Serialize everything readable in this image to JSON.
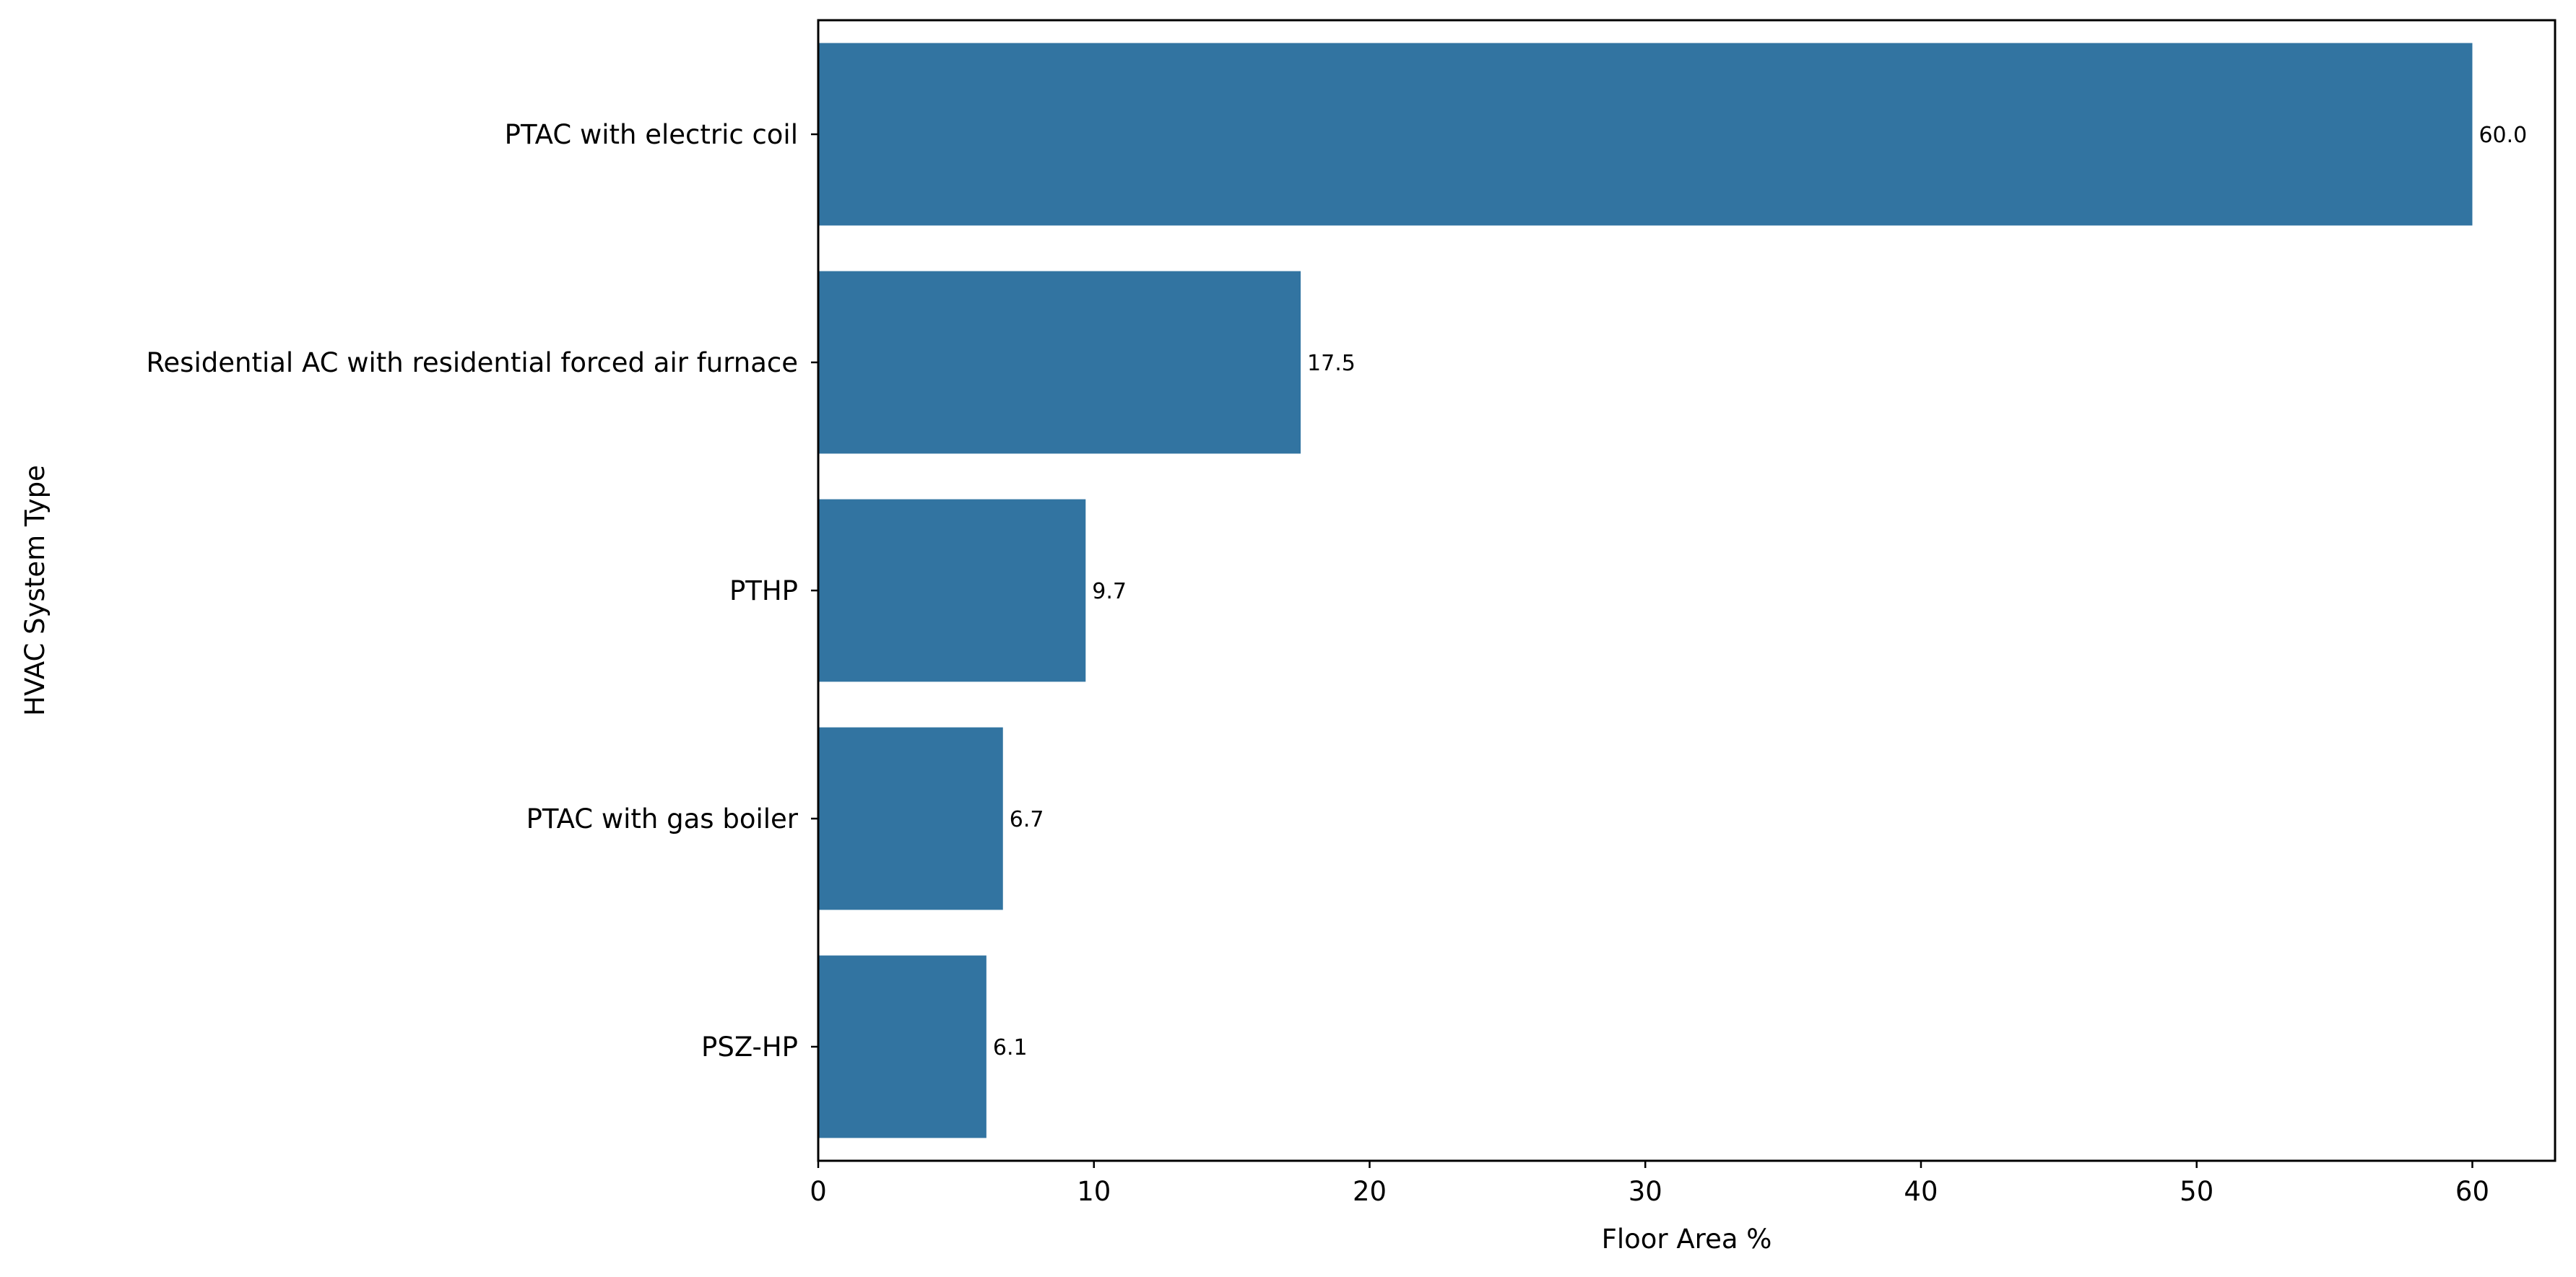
{
  "chart_data": {
    "type": "bar",
    "orientation": "horizontal",
    "title": "",
    "xlabel": "Floor Area %",
    "ylabel": "HVAC System Type",
    "categories": [
      "PTAC with electric coil",
      "Residential AC with residential forced air furnace",
      "PTHP",
      "PTAC with gas boiler",
      "PSZ-HP"
    ],
    "values": [
      60.0,
      17.5,
      9.7,
      6.7,
      6.1
    ],
    "data_labels": [
      "60.0",
      "17.5",
      "9.7",
      "6.7",
      "6.1"
    ],
    "xlim": [
      0,
      63
    ],
    "xticks": [
      0,
      10,
      20,
      30,
      40,
      50,
      60
    ],
    "grid": false,
    "legend": "none",
    "bar_color": "#3274a1"
  }
}
